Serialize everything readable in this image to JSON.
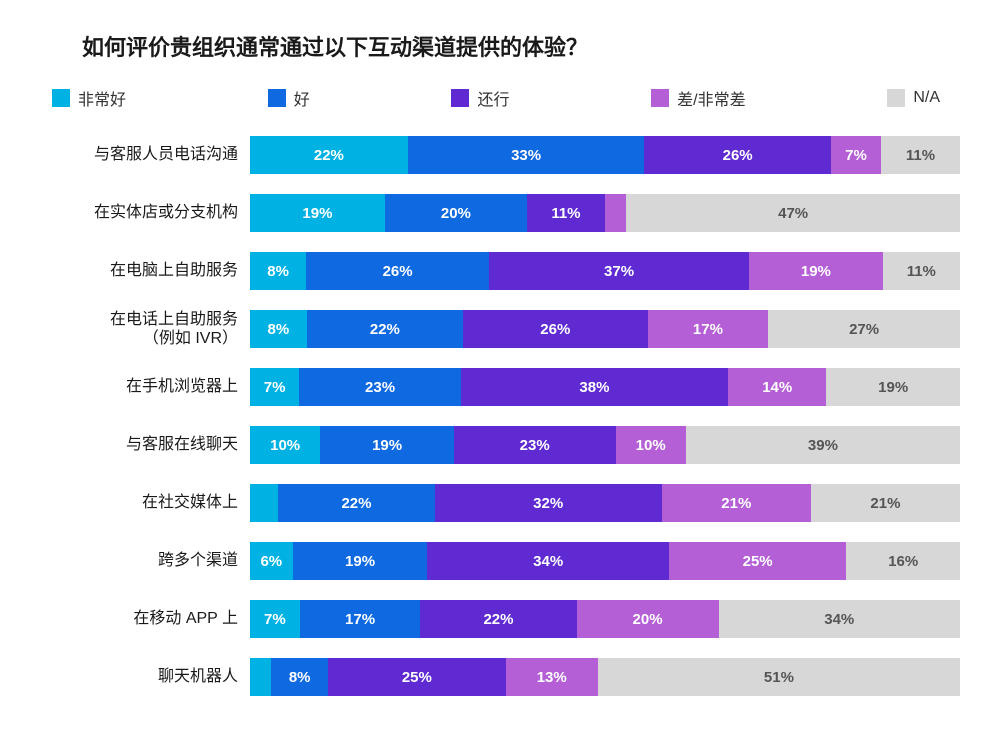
{
  "title": "如何评价贵组织通常通过以下互动渠道提供的体验？",
  "chart": {
    "type": "stacked-bar-horizontal",
    "background_color": "#ffffff",
    "label_fontsize": 16,
    "value_fontsize": 15,
    "series": [
      {
        "key": "excellent",
        "label": "非常好",
        "color": "#00b2e3"
      },
      {
        "key": "good",
        "label": "好",
        "color": "#0f69e0"
      },
      {
        "key": "ok",
        "label": "还行",
        "color": "#5f2ad1"
      },
      {
        "key": "poor",
        "label": "差/非常差",
        "color": "#b55fd6"
      },
      {
        "key": "na",
        "label": "N/A",
        "color": "#d7d7d7"
      }
    ],
    "min_label_percent": 5,
    "categories": [
      {
        "label": "与客服人员电话沟通",
        "values": {
          "excellent": 22,
          "good": 33,
          "ok": 26,
          "poor": 7,
          "na": 11
        }
      },
      {
        "label": "在实体店或分支机构",
        "values": {
          "excellent": 19,
          "good": 20,
          "ok": 11,
          "poor": 3,
          "na": 47
        }
      },
      {
        "label": "在电脑上自助服务",
        "values": {
          "excellent": 8,
          "good": 26,
          "ok": 37,
          "poor": 19,
          "na": 11
        }
      },
      {
        "label": "在电话上自助服务\n（例如 IVR）",
        "values": {
          "excellent": 8,
          "good": 22,
          "ok": 26,
          "poor": 17,
          "na": 27
        }
      },
      {
        "label": "在手机浏览器上",
        "values": {
          "excellent": 7,
          "good": 23,
          "ok": 38,
          "poor": 14,
          "na": 19
        }
      },
      {
        "label": "与客服在线聊天",
        "values": {
          "excellent": 10,
          "good": 19,
          "ok": 23,
          "poor": 10,
          "na": 39
        }
      },
      {
        "label": "在社交媒体上",
        "values": {
          "excellent": 4,
          "good": 22,
          "ok": 32,
          "poor": 21,
          "na": 21
        }
      },
      {
        "label": "跨多个渠道",
        "values": {
          "excellent": 6,
          "good": 19,
          "ok": 34,
          "poor": 25,
          "na": 16
        }
      },
      {
        "label": "在移动 APP 上",
        "values": {
          "excellent": 7,
          "good": 17,
          "ok": 22,
          "poor": 20,
          "na": 34
        }
      },
      {
        "label": "聊天机器人",
        "values": {
          "excellent": 3,
          "good": 8,
          "ok": 25,
          "poor": 13,
          "na": 51
        }
      }
    ]
  }
}
